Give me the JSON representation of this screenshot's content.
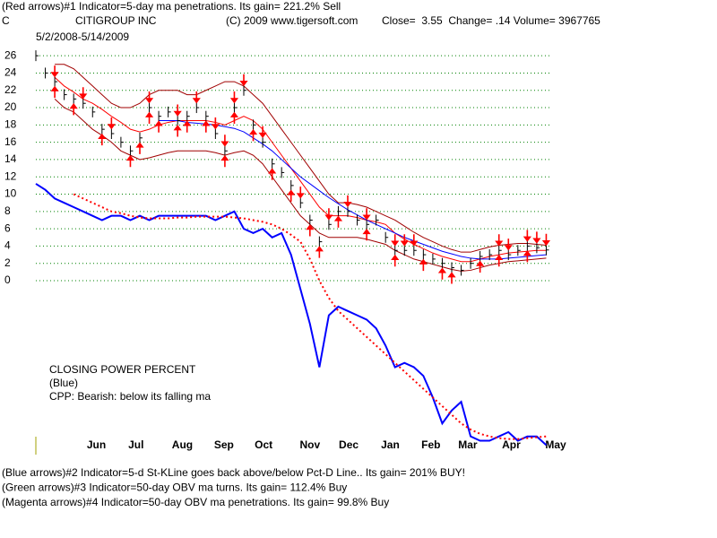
{
  "chart_data": {
    "type": "line",
    "header": "(Red arrows)#1 Indicator=5-day ma penetrations. Its gain= 221.2% Sell",
    "symbol": "C",
    "title": "CITIGROUP INC",
    "copyright": "(C) 2009 www.tigersoft.com",
    "quote": "Close=  3.55  Change= .14 Volume= 3967765",
    "subtitle": "5/2/2008-5/14/2009",
    "annotations": [
      "CLOSING POWER PERCENT",
      "(Blue)",
      "CPP: Bearish: below its falling ma"
    ],
    "notes": [
      {
        "text": "(Blue arrows)#2 Indicator=5-d St-KLine goes back above/below Pct-D Line.. Its gain= 201% BUY!",
        "color": "#000080"
      },
      {
        "text": "(Green arrows)#3 Indicator=50-day OBV ma turns. Its gain= 112.4% Buy",
        "color": "#006400"
      },
      {
        "text": "(Magenta arrows)#4 Indicator=50-day OBV ma penetrations. Its gain= 99.8% Buy",
        "color": "#800040"
      }
    ],
    "xlim": [
      0,
      55
    ],
    "xticks": [
      {
        "value": 6.4,
        "label": "Jun"
      },
      {
        "value": 10.6,
        "label": "Jul"
      },
      {
        "value": 15.5,
        "label": "Aug"
      },
      {
        "value": 19.9,
        "label": "Sep"
      },
      {
        "value": 24.1,
        "label": "Oct"
      },
      {
        "value": 29.0,
        "label": "Nov"
      },
      {
        "value": 33.1,
        "label": "Dec"
      },
      {
        "value": 37.5,
        "label": "Jan"
      },
      {
        "value": 41.8,
        "label": "Feb"
      },
      {
        "value": 45.7,
        "label": "Mar"
      },
      {
        "value": 50.3,
        "label": "Apr"
      },
      {
        "value": 55,
        "label": "May"
      }
    ],
    "ylim": [
      -20,
      27
    ],
    "yticks": [
      0,
      2,
      4,
      6,
      8,
      10,
      12,
      14,
      16,
      18,
      20,
      22,
      24,
      26
    ],
    "grid": true,
    "grid_color": "#008000",
    "close": {
      "color": "#000000",
      "values": [
        26,
        24,
        23,
        21.5,
        21,
        20.5,
        19.5,
        17.5,
        17,
        16,
        15,
        16.5,
        20,
        19,
        19.5,
        18.5,
        19,
        20,
        19,
        17,
        15,
        20,
        22,
        18,
        16,
        13.5,
        12.5,
        11,
        9,
        7,
        4.5,
        6.5,
        8,
        8,
        7,
        6.5,
        7,
        5,
        3.5,
        3.5,
        3.5,
        3,
        2.5,
        2,
        1.5,
        1.2,
        2,
        2.8,
        3,
        3.5,
        3,
        3.5,
        4,
        3.8,
        3.55
      ]
    },
    "series": [
      {
        "color": "#a00000",
        "width": 1,
        "dash": false,
        "values": [
          null,
          null,
          25,
          25,
          24.5,
          23.5,
          22.5,
          21.5,
          20.5,
          20,
          20,
          20.5,
          21.5,
          22,
          22,
          22,
          21.5,
          21.5,
          22,
          22.5,
          23,
          23,
          22.5,
          21.5,
          20.5,
          19,
          17.5,
          16,
          14.5,
          13,
          11.5,
          10,
          9,
          9,
          8.8,
          8.5,
          8,
          7.5,
          7,
          6.3,
          5.6,
          5,
          4.5,
          4,
          3.6,
          3.3,
          3.3,
          3.6,
          3.9,
          4.1,
          4.2,
          4.3,
          4.3,
          4.2,
          4.1
        ]
      },
      {
        "color": "#ff0000",
        "width": 1,
        "dash": false,
        "values": [
          null,
          null,
          23.5,
          22.5,
          21.8,
          21,
          20.5,
          19.8,
          19,
          18.3,
          17.5,
          17.2,
          17.5,
          18,
          18.3,
          18.5,
          18.5,
          18.5,
          18.5,
          18.3,
          18,
          18.5,
          19,
          18.5,
          17.5,
          16,
          14.5,
          13,
          11.5,
          10,
          8.5,
          7.5,
          7.5,
          7.5,
          7.3,
          7,
          6.8,
          6.5,
          5.5,
          4.8,
          4.2,
          3.7,
          3.2,
          2.8,
          2.5,
          2.2,
          2.2,
          2.5,
          2.8,
          3,
          3.2,
          3.3,
          3.4,
          3.5,
          3.5
        ]
      },
      {
        "color": "#a00000",
        "width": 1,
        "dash": false,
        "values": [
          null,
          null,
          21,
          20,
          19.5,
          18.5,
          17.5,
          16.8,
          16,
          15,
          14.5,
          14,
          14.2,
          14.5,
          14.8,
          15,
          15,
          15,
          15,
          14.8,
          14.5,
          14.8,
          15,
          14.5,
          13.5,
          12,
          10.5,
          9,
          7.5,
          6.5,
          5.5,
          5,
          5,
          5,
          5,
          4.8,
          4.5,
          4.2,
          3.5,
          3,
          2.5,
          2.2,
          1.9,
          1.6,
          1.3,
          1.1,
          1.2,
          1.5,
          1.8,
          2,
          2.2,
          2.3,
          2.4,
          2.5,
          2.6
        ]
      },
      {
        "color": "#0000ff",
        "width": 1,
        "dash": false,
        "values": [
          null,
          null,
          null,
          null,
          null,
          null,
          null,
          null,
          null,
          null,
          null,
          null,
          null,
          18.5,
          18.5,
          18.5,
          18.3,
          18.2,
          18.1,
          18,
          17.8,
          17.6,
          17.2,
          16.5,
          15.8,
          15,
          14,
          13,
          12,
          11.2,
          10.4,
          9.6,
          8.9,
          8.2,
          7.6,
          7,
          6.5,
          6,
          5.5,
          5,
          4.6,
          4.2,
          3.8,
          3.4,
          3.1,
          2.8,
          2.6,
          2.5,
          2.5,
          2.5,
          2.6,
          2.7,
          2.8,
          2.9,
          3
        ]
      },
      {
        "color": "#0000ff",
        "width": 2,
        "dash": false,
        "values": [
          11.2,
          10.5,
          9.5,
          9,
          8.5,
          8,
          7.5,
          7,
          7.5,
          7.5,
          7,
          7.5,
          7,
          7.5,
          7.5,
          7.5,
          7.5,
          7.5,
          7.5,
          7,
          7.5,
          8,
          6,
          5.5,
          6,
          5,
          5.5,
          3,
          -1,
          -5,
          -10,
          -4,
          -3,
          -3.5,
          -4,
          -4.5,
          -5.5,
          -7.5,
          -10,
          -9.5,
          -10,
          -11,
          -13.5,
          -16.5,
          -15,
          -14,
          -18,
          -18.5,
          -18.5,
          -18,
          -17.5,
          -18.5,
          -18,
          -18,
          -19
        ]
      },
      {
        "color": "#ff0000",
        "width": 2,
        "dash": true,
        "values": [
          null,
          null,
          null,
          null,
          10,
          9.5,
          9,
          8.5,
          8,
          7.8,
          7.5,
          7.3,
          7.2,
          7.2,
          7.2,
          7.3,
          7.3,
          7.4,
          7.4,
          7.4,
          7.4,
          7.3,
          7.2,
          7,
          6.8,
          6.5,
          6,
          5.3,
          4.5,
          2.5,
          0,
          -2,
          -3.5,
          -4.5,
          -5.5,
          -6.5,
          -7.5,
          -8.5,
          -9.5,
          -10.5,
          -11.5,
          -12.5,
          -13.5,
          -14.5,
          -15.5,
          -16.5,
          -17.2,
          -17.7,
          -18,
          -18.2,
          -18.3,
          -18.3,
          -18.2,
          -18.1,
          -18
        ]
      }
    ],
    "arrow_color": "#ff0000",
    "arrows_down": [
      2,
      5,
      8,
      12,
      15,
      17,
      19,
      20,
      21,
      22,
      24,
      28,
      31,
      33,
      35,
      38,
      39,
      40,
      49,
      50,
      52,
      53,
      54
    ],
    "arrows_up": [
      2,
      4,
      7,
      10,
      11,
      12,
      13,
      15,
      16,
      18,
      20,
      21,
      23,
      25,
      27,
      29,
      30,
      32,
      35,
      38,
      41,
      43,
      44,
      47,
      49,
      52
    ]
  }
}
